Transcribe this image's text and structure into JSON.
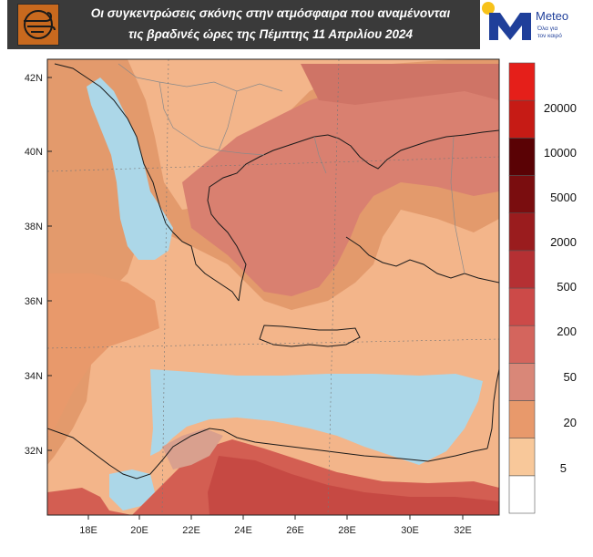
{
  "header": {
    "title_line1": "Οι συγκεντρώσεις σκόνης στην ατμόσφαιρα που αναμένονται",
    "title_line2": "τις βραδινές ώρες της Πέμπτης 11 Απριλίου 2024"
  },
  "brand": {
    "name": "Meteo",
    "tagline_line1": "Όλα για",
    "tagline_line2": "τον καιρό"
  },
  "map": {
    "lat_labels": [
      "42N",
      "40N",
      "38N",
      "36N",
      "34N",
      "32N"
    ],
    "lon_labels": [
      "18E",
      "20E",
      "22E",
      "24E",
      "26E",
      "28E",
      "30E",
      "32E"
    ]
  },
  "legend": {
    "labels": [
      "20000",
      "10000",
      "5000",
      "2000",
      "500",
      "200",
      "50",
      "20",
      "5"
    ],
    "colors": [
      "#ffffff",
      "#f8c89a",
      "#e8996b",
      "#d98778",
      "#d4655d",
      "#cc4a48",
      "#b53033",
      "#9a1c1e",
      "#7a0d0f",
      "#5a0205",
      "#c61b15",
      "#e51f1a"
    ]
  },
  "colors": {
    "sea_clear": "#acd7e8",
    "land_low": "#f3b58a",
    "dust_mid": "#e39a6c",
    "dust_high": "#cf7466",
    "dust_max": "#c44d48",
    "accent_brand": "#1f3f9a"
  }
}
